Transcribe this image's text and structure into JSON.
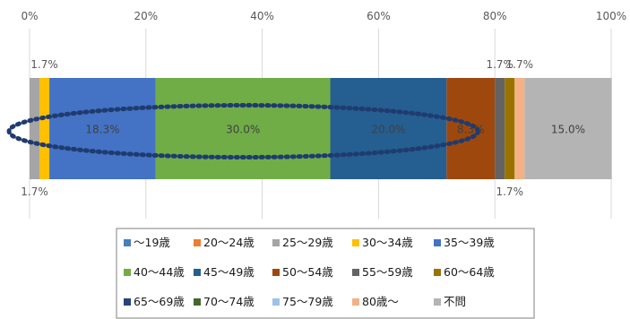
{
  "chart_data": {
    "type": "bar",
    "orientation": "horizontal",
    "stacked": true,
    "percent_axis": true,
    "xlim": [
      0,
      100
    ],
    "x_ticks": [
      "0%",
      "20%",
      "40%",
      "60%",
      "80%",
      "100%"
    ],
    "grid": true,
    "legend_position": "bottom",
    "series": [
      {
        "name": "〜19歳",
        "value": 0,
        "color": "#4A7EBB"
      },
      {
        "name": "20〜24歳",
        "value": 0,
        "color": "#ED7D31"
      },
      {
        "name": "25〜29歳",
        "value": 1.7,
        "color": "#A5A5A5",
        "label": "1.7%",
        "label_pos": "below"
      },
      {
        "name": "30〜34歳",
        "value": 1.7,
        "color": "#FFC000",
        "label": "1.7%",
        "label_pos": "above"
      },
      {
        "name": "35〜39歳",
        "value": 18.3,
        "color": "#4472C4",
        "label": "18.3%",
        "label_pos": "inside"
      },
      {
        "name": "40〜44歳",
        "value": 30.0,
        "color": "#70AD47",
        "label": "30.0%",
        "label_pos": "inside"
      },
      {
        "name": "45〜49歳",
        "value": 20.0,
        "color": "#255E91",
        "label": "20.0%",
        "label_pos": "inside"
      },
      {
        "name": "50〜54歳",
        "value": 8.3,
        "color": "#9E480E",
        "label": "8.3%",
        "label_pos": "inside"
      },
      {
        "name": "55〜59歳",
        "value": 1.7,
        "color": "#636363",
        "label": "1.7%",
        "label_pos": "above"
      },
      {
        "name": "60〜64歳",
        "value": 1.7,
        "color": "#997300",
        "label": "1.7%",
        "label_pos": "below"
      },
      {
        "name": "65〜69歳",
        "value": 0,
        "color": "#264478"
      },
      {
        "name": "70〜74歳",
        "value": 0,
        "color": "#43682B"
      },
      {
        "name": "75〜79歳",
        "value": 0,
        "color": "#9DC3E6"
      },
      {
        "name": "80歳〜",
        "value": 1.7,
        "color": "#F4B183",
        "label": "1.7%",
        "label_pos": "above"
      },
      {
        "name": "不問",
        "value": 15.0,
        "color": "#B4B4B4",
        "label": "15.0%",
        "label_pos": "inside"
      }
    ],
    "annotation": {
      "shape": "dotted-ellipse",
      "color": "#1F3B6F",
      "spans": [
        "35〜39歳",
        "40〜44歳",
        "45〜49歳"
      ]
    }
  }
}
